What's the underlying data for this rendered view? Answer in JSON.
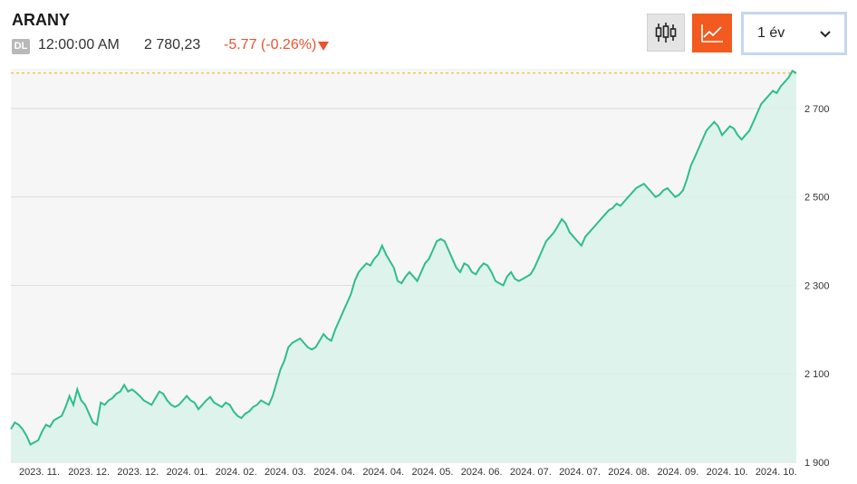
{
  "header": {
    "title": "ARANY",
    "badge": "DL",
    "time": "12:00:00 AM",
    "price": "2 780,23",
    "change": "-5.77 (-0.26%)",
    "change_color": "#e8542f"
  },
  "toolbar": {
    "candle_icon": "candlestick-icon",
    "line_icon": "line-chart-icon",
    "active_color": "#f25a1f",
    "period_value": "1 év",
    "period_icon": "chevron-down-icon"
  },
  "chart_data": {
    "type": "area",
    "line_color": "#2ebd8e",
    "fill_color": "#d9f2ea",
    "reference_line": {
      "value": 2780.23,
      "color": "#f0c419",
      "style": "dashed"
    },
    "yticks": [
      1900,
      2100,
      2300,
      2500,
      2700
    ],
    "ytick_labels": [
      "1 900",
      "2 100",
      "2 300",
      "2 500",
      "2 700"
    ],
    "ylim": [
      1900,
      2790
    ],
    "xtick_labels": [
      "2023. 11.",
      "2023. 12.",
      "2023. 12.",
      "2024. 01.",
      "2024. 02.",
      "2024. 03.",
      "2024. 04.",
      "2024. 04.",
      "2024. 05.",
      "2024. 06.",
      "2024. 07.",
      "2024. 07.",
      "2024. 08.",
      "2024. 09.",
      "2024. 10.",
      "2024. 10."
    ],
    "values": [
      1975,
      1990,
      1985,
      1975,
      1960,
      1940,
      1945,
      1950,
      1970,
      1985,
      1980,
      1995,
      2000,
      2005,
      2025,
      2050,
      2030,
      2065,
      2040,
      2030,
      2010,
      1990,
      1985,
      2035,
      2030,
      2040,
      2045,
      2055,
      2060,
      2075,
      2060,
      2065,
      2058,
      2050,
      2040,
      2035,
      2030,
      2045,
      2060,
      2055,
      2040,
      2030,
      2025,
      2030,
      2040,
      2050,
      2040,
      2035,
      2020,
      2030,
      2040,
      2048,
      2035,
      2030,
      2025,
      2035,
      2030,
      2015,
      2005,
      2000,
      2010,
      2015,
      2025,
      2030,
      2040,
      2035,
      2030,
      2050,
      2080,
      2110,
      2130,
      2160,
      2170,
      2175,
      2180,
      2170,
      2160,
      2155,
      2160,
      2175,
      2190,
      2180,
      2175,
      2200,
      2220,
      2240,
      2260,
      2280,
      2310,
      2330,
      2340,
      2350,
      2345,
      2360,
      2370,
      2390,
      2370,
      2355,
      2340,
      2310,
      2305,
      2320,
      2330,
      2320,
      2310,
      2330,
      2350,
      2360,
      2380,
      2400,
      2405,
      2400,
      2380,
      2360,
      2340,
      2330,
      2350,
      2345,
      2330,
      2325,
      2340,
      2350,
      2345,
      2330,
      2310,
      2305,
      2300,
      2320,
      2330,
      2315,
      2310,
      2315,
      2320,
      2325,
      2340,
      2360,
      2380,
      2400,
      2410,
      2420,
      2435,
      2450,
      2440,
      2420,
      2410,
      2400,
      2390,
      2410,
      2420,
      2430,
      2440,
      2450,
      2460,
      2470,
      2475,
      2485,
      2480,
      2490,
      2500,
      2510,
      2520,
      2525,
      2530,
      2520,
      2510,
      2500,
      2505,
      2515,
      2520,
      2510,
      2500,
      2505,
      2515,
      2540,
      2570,
      2590,
      2610,
      2630,
      2650,
      2660,
      2670,
      2660,
      2640,
      2650,
      2660,
      2655,
      2640,
      2630,
      2640,
      2650,
      2670,
      2690,
      2710,
      2720,
      2730,
      2740,
      2735,
      2750,
      2760,
      2770,
      2785,
      2780
    ]
  }
}
